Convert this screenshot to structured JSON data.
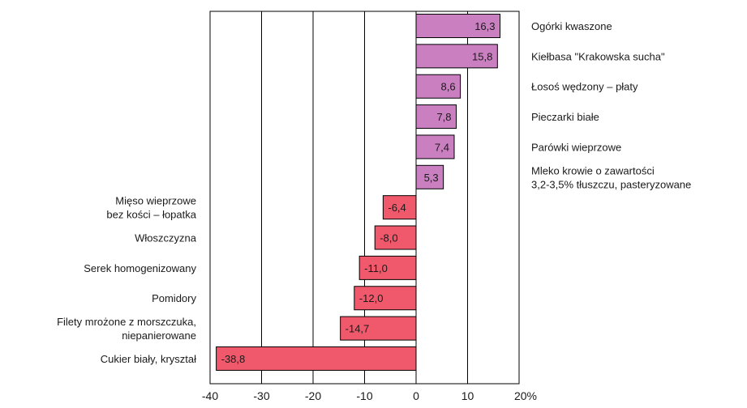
{
  "chart_data": {
    "type": "bar",
    "orientation": "horizontal",
    "x_unit": "%",
    "xlim": [
      -40,
      20
    ],
    "x_ticks": [
      "-40",
      "-30",
      "-20",
      "-10",
      "0",
      "10",
      "20%"
    ],
    "x_tick_values": [
      -40,
      -30,
      -20,
      -10,
      0,
      10,
      20
    ],
    "grid": true,
    "colors": {
      "positive": "#c97fc0",
      "negative": "#f0596b",
      "axis": "#000000"
    },
    "categories": [
      {
        "label": [
          "Ogórki kwaszone"
        ],
        "value": 16.3,
        "value_label": "16,3"
      },
      {
        "label": [
          "Kiełbasa \"Krakowska sucha\""
        ],
        "value": 15.8,
        "value_label": "15,8"
      },
      {
        "label": [
          "Łosoś wędzony – płaty"
        ],
        "value": 8.6,
        "value_label": "8,6"
      },
      {
        "label": [
          "Pieczarki białe"
        ],
        "value": 7.8,
        "value_label": "7,8"
      },
      {
        "label": [
          "Parówki wieprzowe"
        ],
        "value": 7.4,
        "value_label": "7,4"
      },
      {
        "label": [
          "Mleko krowie o zawartości",
          "3,2-3,5% tłuszczu, pasteryzowane"
        ],
        "value": 5.3,
        "value_label": "5,3"
      },
      {
        "label": [
          "Mięso wieprzowe",
          "bez kości – łopatka"
        ],
        "value": -6.4,
        "value_label": "-6,4"
      },
      {
        "label": [
          "Włoszczyzna"
        ],
        "value": -8.0,
        "value_label": "-8,0"
      },
      {
        "label": [
          "Serek homogenizowany"
        ],
        "value": -11.0,
        "value_label": "-11,0"
      },
      {
        "label": [
          "Pomidory"
        ],
        "value": -12.0,
        "value_label": "-12,0"
      },
      {
        "label": [
          "Filety mrożone z morszczuka,",
          "niepanierowane"
        ],
        "value": -14.7,
        "value_label": "-14,7"
      },
      {
        "label": [
          "Cukier biały, kryształ"
        ],
        "value": -38.8,
        "value_label": "-38,8"
      }
    ]
  }
}
